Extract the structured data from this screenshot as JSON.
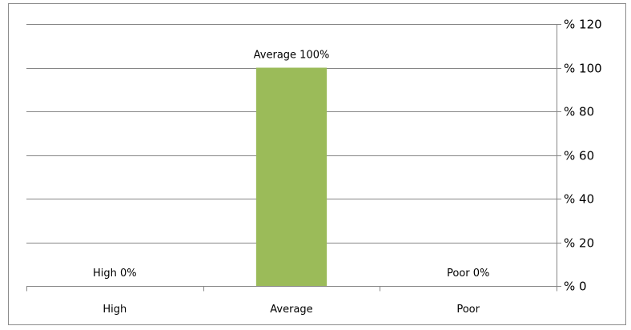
{
  "chart_data": {
    "type": "bar",
    "categories": [
      "High",
      "Average",
      "Poor"
    ],
    "values": [
      0,
      100,
      0
    ],
    "data_labels": [
      "High 0%",
      "Average 100%",
      "Poor 0%"
    ],
    "y_axis": {
      "position": "right",
      "ylim": [
        0,
        120
      ],
      "ticks": [
        0,
        20,
        40,
        60,
        80,
        100,
        120
      ],
      "tick_labels": [
        "% 0",
        "% 20",
        "% 40",
        "% 60",
        "% 80",
        "% 100",
        "% 120"
      ]
    },
    "grid": true,
    "legend": "none",
    "title": "",
    "xlabel": "",
    "ylabel": ""
  },
  "colors": {
    "bar": "#9bbb59",
    "gridline": "#868686",
    "axis": "#868686",
    "frame": "#8c8c8c"
  }
}
